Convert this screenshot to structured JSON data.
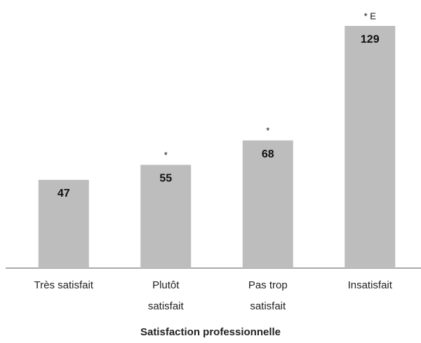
{
  "chart_data": {
    "type": "bar",
    "categories": [
      "Très satisfait",
      "Plutôt satisfait",
      "Pas trop satisfait",
      "Insatisfait"
    ],
    "values": [
      47,
      55,
      68,
      129
    ],
    "annotations": [
      null,
      "*",
      "*",
      "* E"
    ],
    "color": "#bdbdbd",
    "x_label": "Satisfaction professionnelle"
  }
}
